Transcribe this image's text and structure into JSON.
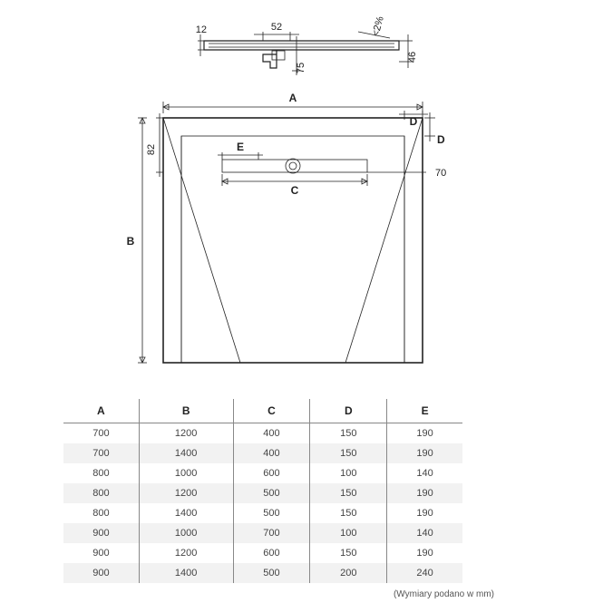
{
  "diagram": {
    "type": "engineering-drawing",
    "profile": {
      "dim_12": "12",
      "dim_52": "52",
      "dim_75": "75",
      "dim_46": "46",
      "slope": "<2%"
    },
    "plan": {
      "label_A": "A",
      "label_B": "B",
      "label_C": "C",
      "label_D_top": "D",
      "label_D_side": "D",
      "label_E": "E",
      "dim_82": "82",
      "dim_70": "70"
    },
    "colors": {
      "line": "#222222",
      "background": "#ffffff",
      "row_alt": "#f2f2f2",
      "border": "#888888",
      "text": "#444444"
    }
  },
  "table": {
    "columns": [
      "A",
      "B",
      "C",
      "D",
      "E"
    ],
    "rows": [
      [
        "700",
        "1200",
        "400",
        "150",
        "190"
      ],
      [
        "700",
        "1400",
        "400",
        "150",
        "190"
      ],
      [
        "800",
        "1000",
        "600",
        "100",
        "140"
      ],
      [
        "800",
        "1200",
        "500",
        "150",
        "190"
      ],
      [
        "800",
        "1400",
        "500",
        "150",
        "190"
      ],
      [
        "900",
        "1000",
        "700",
        "100",
        "140"
      ],
      [
        "900",
        "1200",
        "600",
        "150",
        "190"
      ],
      [
        "900",
        "1400",
        "500",
        "200",
        "240"
      ]
    ],
    "footnote": "(Wymiary podano w mm)"
  }
}
